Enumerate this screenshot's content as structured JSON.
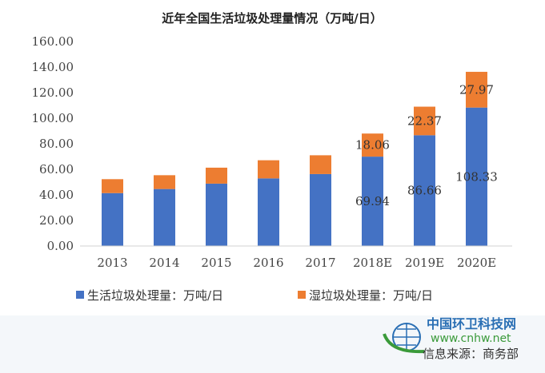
{
  "chart_data": {
    "type": "bar",
    "stacked": true,
    "title": "近年全国生活垃圾处理量情况（万吨/日）",
    "categories": [
      "2013",
      "2014",
      "2015",
      "2016",
      "2017",
      "2018E",
      "2019E",
      "2020E"
    ],
    "series": [
      {
        "name": "生活垃圾处理量：万吨/日",
        "color": "#4472c4",
        "values": [
          41.4,
          44.6,
          48.8,
          52.9,
          56.3,
          69.94,
          86.66,
          108.33
        ],
        "labels": [
          null,
          null,
          null,
          null,
          null,
          "69.94",
          "86.66",
          "108.33"
        ]
      },
      {
        "name": "湿垃圾处理量：万吨/日",
        "color": "#ed7d31",
        "values": [
          10.9,
          10.8,
          12.5,
          14.2,
          14.7,
          18.06,
          22.37,
          27.97
        ],
        "labels": [
          null,
          null,
          null,
          null,
          null,
          "18.06",
          "22.37",
          "27.97"
        ]
      }
    ],
    "ylim": [
      0,
      160
    ],
    "yticks": [
      "0.00",
      "20.00",
      "40.00",
      "60.00",
      "80.00",
      "100.00",
      "120.00",
      "140.00",
      "160.00"
    ],
    "grid": false,
    "legend": "bottom"
  },
  "watermark": {
    "brand": "中国环卫科技网",
    "url": "www.cnhw.net",
    "source": "信息来源：商务部"
  }
}
